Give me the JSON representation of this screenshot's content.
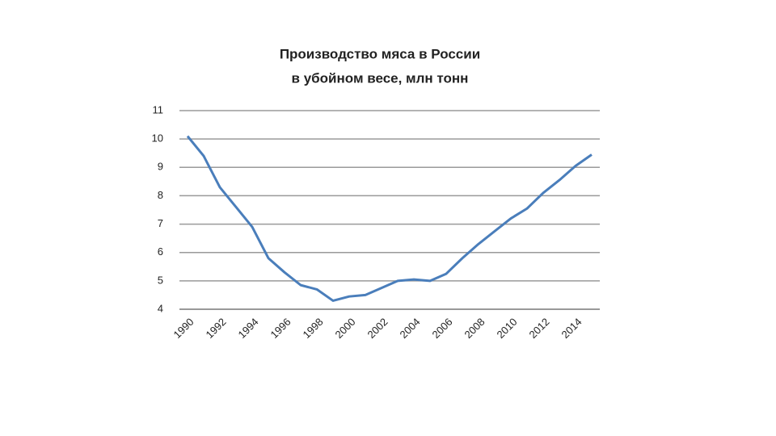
{
  "chart_data": {
    "type": "line",
    "title": [
      "Производство мяса в России",
      "в убойном весе, млн тонн"
    ],
    "categories": [
      "1990",
      null,
      "1992",
      null,
      "1994",
      null,
      "1996",
      null,
      "1998",
      null,
      "2000",
      null,
      "2002",
      null,
      "2004",
      null,
      "2006",
      null,
      "2008",
      null,
      "2010",
      null,
      "2012",
      null,
      "2014",
      null
    ],
    "values": [
      10.1,
      9.4,
      8.3,
      7.6,
      6.9,
      5.8,
      5.3,
      4.85,
      4.7,
      4.3,
      4.45,
      4.5,
      4.75,
      5.0,
      5.05,
      5.0,
      5.25,
      5.8,
      6.3,
      6.75,
      7.2,
      7.55,
      8.1,
      8.55,
      9.05,
      9.45
    ],
    "color": "#4a7ebb",
    "ylim": [
      4,
      11
    ],
    "yticks": [
      4,
      5,
      6,
      7,
      8,
      9,
      10,
      11
    ],
    "grid": true
  }
}
